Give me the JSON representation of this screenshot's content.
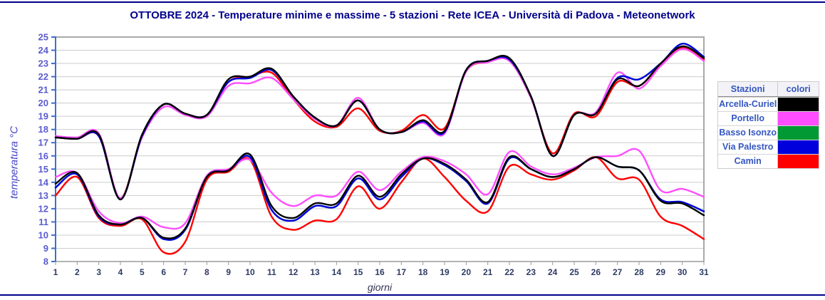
{
  "title": "OTTOBRE 2024 - Temperature minime e massime - 5 stazioni -  Rete ICEA - Università di Padova - Meteonetwork",
  "legend": {
    "header": {
      "stazioni": "Stazioni",
      "colori": "colori"
    },
    "rows": [
      {
        "station": "Arcella-Curiel",
        "color": "#000000"
      },
      {
        "station": "Portello",
        "color": "#FF4DFF"
      },
      {
        "station": "Basso Isonzo",
        "color": "#009933"
      },
      {
        "station": "Via Palestro",
        "color": "#0000DD"
      },
      {
        "station": "Camin",
        "color": "#FF0000"
      }
    ]
  },
  "chart_data": {
    "type": "line",
    "title": "OTTOBRE 2024 - Temperature minime e massime - 5 stazioni -  Rete ICEA - Università di Padova - Meteonetwork",
    "xlabel": "giorni",
    "ylabel": "temperatura °C",
    "x": [
      1,
      2,
      3,
      4,
      5,
      6,
      7,
      8,
      9,
      10,
      11,
      12,
      13,
      14,
      15,
      16,
      17,
      18,
      19,
      20,
      21,
      22,
      23,
      24,
      25,
      26,
      27,
      28,
      29,
      30,
      31
    ],
    "xlim": [
      1,
      31
    ],
    "ylim": [
      8,
      25
    ],
    "grid": true,
    "legend_position": "right-outside",
    "axis_colors": {
      "y_axis": "#3E6DCC",
      "y_tick_labels": "#5B5BD0",
      "x_tick_labels": "#2E3A64",
      "grid": "#CCCCCC",
      "plot_border": "#A9A9A9"
    },
    "series": [
      {
        "name": "Basso Isonzo Tmax",
        "station": "Basso Isonzo",
        "group": "max",
        "color": "#009933",
        "values": [
          17.4,
          17.3,
          17.5,
          12.7,
          17.5,
          19.9,
          19.2,
          19.1,
          21.6,
          21.9,
          22.5,
          20.5,
          18.9,
          18.3,
          20.2,
          18.0,
          17.8,
          18.6,
          17.8,
          22.5,
          23.2,
          23.3,
          20.5,
          16.0,
          19.1,
          19.2,
          21.9,
          21.8,
          23.0,
          24.5,
          23.5
        ]
      },
      {
        "name": "Basso Isonzo Tmin",
        "station": "Basso Isonzo",
        "group": "min",
        "color": "#009933",
        "values": [
          13.6,
          14.6,
          11.4,
          10.8,
          11.3,
          9.7,
          10.4,
          14.4,
          14.9,
          15.9,
          11.9,
          11.1,
          12.2,
          12.2,
          14.3,
          12.7,
          14.4,
          15.8,
          15.3,
          14.1,
          12.4,
          15.8,
          15.0,
          14.4,
          15.0,
          15.9,
          15.2,
          14.9,
          12.7,
          12.5,
          11.8
        ]
      },
      {
        "name": "Camin Tmax",
        "station": "Camin",
        "group": "max",
        "color": "#FF0000",
        "values": [
          17.4,
          17.3,
          17.5,
          12.8,
          17.5,
          19.9,
          19.2,
          19.1,
          21.6,
          22.0,
          22.3,
          20.3,
          18.6,
          18.2,
          19.6,
          17.9,
          17.9,
          19.1,
          18.1,
          22.4,
          23.1,
          23.2,
          20.4,
          16.2,
          19.2,
          19.0,
          21.6,
          21.3,
          22.9,
          24.2,
          23.3
        ]
      },
      {
        "name": "Camin Tmin",
        "station": "Camin",
        "group": "min",
        "color": "#FF0000",
        "values": [
          13.0,
          14.4,
          11.3,
          10.7,
          11.2,
          8.7,
          9.5,
          14.2,
          14.8,
          15.7,
          11.4,
          10.4,
          11.1,
          11.2,
          13.7,
          12.0,
          14.0,
          15.8,
          14.4,
          12.6,
          11.8,
          15.2,
          14.6,
          14.2,
          14.9,
          15.9,
          14.3,
          14.2,
          11.4,
          10.7,
          9.7
        ]
      },
      {
        "name": "Portello Tmax",
        "station": "Portello",
        "group": "max",
        "color": "#FF4DFF",
        "values": [
          17.5,
          17.4,
          17.7,
          12.8,
          17.4,
          19.7,
          19.1,
          19.0,
          21.3,
          21.5,
          21.9,
          20.3,
          18.8,
          18.3,
          20.4,
          18.0,
          17.8,
          18.5,
          17.7,
          22.4,
          23.1,
          23.2,
          20.4,
          16.0,
          19.1,
          19.3,
          22.3,
          21.1,
          22.8,
          24.1,
          23.2
        ]
      },
      {
        "name": "Portello Tmin",
        "station": "Portello",
        "group": "min",
        "color": "#FF4DFF",
        "values": [
          14.4,
          14.7,
          11.8,
          10.9,
          11.4,
          10.6,
          10.9,
          14.5,
          15.0,
          15.7,
          13.2,
          12.2,
          13.0,
          13.0,
          14.8,
          13.4,
          14.8,
          15.9,
          15.6,
          14.6,
          13.1,
          16.3,
          15.2,
          14.6,
          15.1,
          15.9,
          16.0,
          16.4,
          13.4,
          13.5,
          12.9
        ]
      },
      {
        "name": "Via Palestro Tmax",
        "station": "Via Palestro",
        "group": "max",
        "color": "#0000DD",
        "values": [
          17.4,
          17.3,
          17.5,
          12.7,
          17.5,
          19.9,
          19.2,
          19.1,
          21.6,
          21.9,
          22.5,
          20.5,
          18.9,
          18.3,
          20.2,
          18.0,
          17.8,
          18.6,
          17.8,
          22.5,
          23.2,
          23.3,
          20.5,
          16.0,
          19.1,
          19.2,
          21.9,
          21.8,
          23.0,
          24.5,
          23.5
        ]
      },
      {
        "name": "Via Palestro Tmin",
        "station": "Via Palestro",
        "group": "min",
        "color": "#0000DD",
        "values": [
          13.6,
          14.6,
          11.4,
          10.8,
          11.3,
          9.7,
          10.4,
          14.4,
          14.9,
          15.9,
          11.9,
          11.1,
          12.2,
          12.2,
          14.3,
          12.7,
          14.4,
          15.8,
          15.3,
          14.1,
          12.4,
          15.8,
          15.0,
          14.4,
          15.0,
          15.9,
          15.2,
          14.9,
          12.7,
          12.5,
          11.8
        ]
      },
      {
        "name": "Arcella-Curiel Tmax",
        "station": "Arcella-Curiel",
        "group": "max",
        "color": "#000000",
        "values": [
          17.4,
          17.3,
          17.6,
          12.7,
          17.6,
          19.9,
          19.2,
          19.1,
          21.8,
          22.0,
          22.6,
          20.5,
          18.9,
          18.3,
          20.2,
          18.0,
          17.8,
          18.7,
          17.9,
          22.5,
          23.2,
          23.4,
          20.5,
          16.0,
          19.1,
          19.2,
          21.8,
          21.3,
          23.0,
          24.3,
          23.4
        ]
      },
      {
        "name": "Arcella-Curiel Tmin",
        "station": "Arcella-Curiel",
        "group": "min",
        "color": "#000000",
        "values": [
          13.9,
          14.7,
          11.5,
          10.8,
          11.3,
          9.8,
          10.5,
          14.4,
          14.9,
          16.1,
          12.2,
          11.3,
          12.4,
          12.4,
          14.5,
          12.9,
          14.6,
          15.8,
          15.4,
          14.2,
          12.5,
          15.9,
          15.0,
          14.4,
          15.0,
          15.9,
          15.2,
          14.9,
          12.6,
          12.4,
          11.5
        ]
      }
    ]
  }
}
